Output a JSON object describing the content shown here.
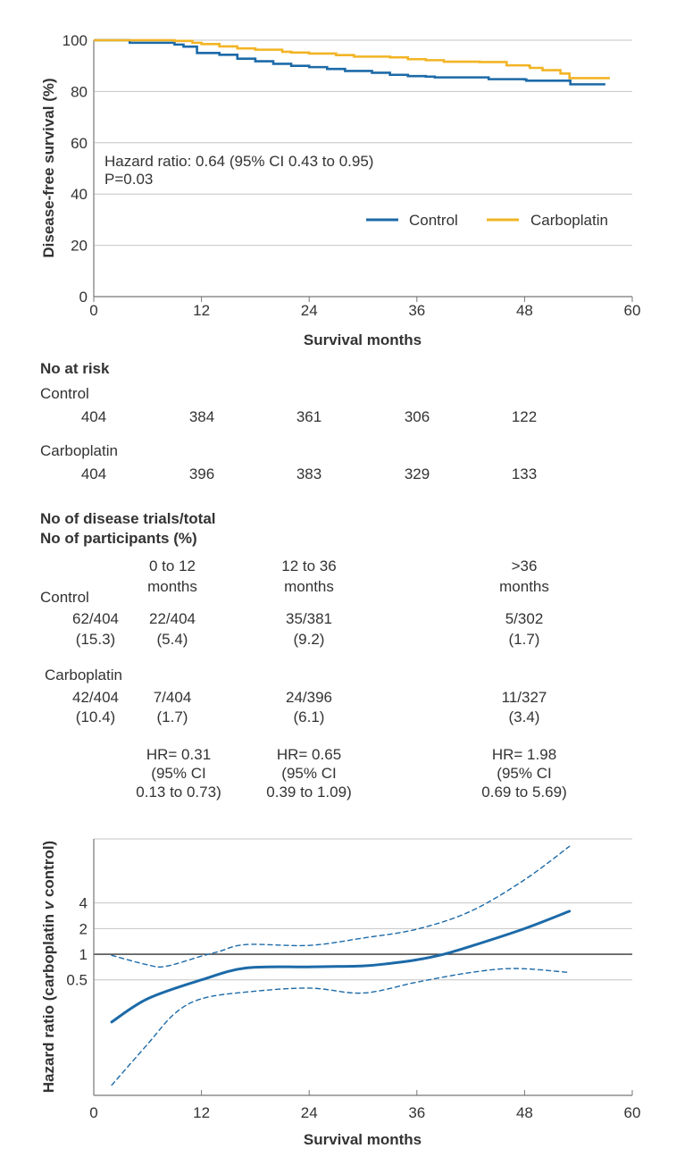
{
  "colors": {
    "control": "#1c6aa8",
    "carboplatin": "#f2b425",
    "grid": "#c4c4c4",
    "axis": "#777777",
    "reference_line": "#333333"
  },
  "chart_data": [
    {
      "type": "line",
      "step": true,
      "xlabel": "Survival months",
      "ylabel": "Disease-free survival (%)",
      "xlim": [
        0,
        60
      ],
      "ylim": [
        0,
        100
      ],
      "xticks": [
        0,
        12,
        24,
        36,
        48,
        60
      ],
      "yticks": [
        0,
        20,
        40,
        60,
        80,
        100
      ],
      "grid": "horizontal",
      "legend_placement": "middle-right",
      "annotation": [
        "Hazard ratio: 0.64 (95% CI 0.43 to 0.95)",
        "P=0.03"
      ],
      "series": [
        {
          "name": "Control",
          "color_key": "control",
          "x": [
            0,
            2,
            4,
            9,
            10,
            11.5,
            14,
            16,
            18,
            20,
            22,
            24,
            26,
            28,
            31,
            33,
            35,
            37,
            38,
            43,
            44,
            48,
            48.2,
            53,
            53.1,
            57
          ],
          "y": [
            100,
            100,
            99,
            98.3,
            97.5,
            95,
            94.3,
            92.8,
            91.8,
            90.8,
            90,
            89.5,
            88.8,
            88,
            87.3,
            86.5,
            86,
            85.8,
            85.5,
            85.5,
            84.8,
            84.7,
            84.2,
            84.2,
            82.8,
            82.8
          ]
        },
        {
          "name": "Carboplatin",
          "color_key": "carboplatin",
          "x": [
            0,
            8,
            9,
            11,
            12,
            14,
            16,
            18,
            21,
            22,
            24,
            27,
            29,
            33,
            35,
            37,
            39,
            43,
            46,
            48.5,
            48.6,
            50,
            52,
            53,
            57.5
          ],
          "y": [
            100,
            100,
            99.7,
            99,
            98.5,
            97.6,
            96.8,
            96.3,
            95.5,
            95.2,
            94.8,
            94.2,
            93.6,
            93.3,
            92.6,
            92.2,
            91.6,
            91.5,
            90.2,
            90,
            89.2,
            88.3,
            87,
            85.2,
            85.2
          ]
        }
      ]
    },
    {
      "type": "line",
      "xlabel": "Survival months",
      "ylabel_parts": [
        "Hazard ratio (carboplatin ",
        "v",
        " control)"
      ],
      "xlim": [
        0,
        60
      ],
      "ylim": [
        0.022,
        22.6
      ],
      "yscale": "log",
      "xticks": [
        0,
        12,
        24,
        36,
        48,
        60
      ],
      "yticks": [
        0.5,
        1,
        2,
        4
      ],
      "ytick_labels": [
        "0.5",
        "1",
        "2",
        "4"
      ],
      "reference_line": 1,
      "grid": "horizontal",
      "series": [
        {
          "role": "estimate",
          "style": "solid",
          "x": [
            2,
            6,
            12,
            17,
            24,
            30,
            33,
            36,
            39,
            42,
            48,
            53
          ],
          "y": [
            0.16,
            0.3,
            0.5,
            0.69,
            0.71,
            0.73,
            0.78,
            0.86,
            1.0,
            1.24,
            2.0,
            3.2
          ]
        },
        {
          "role": "upper 95% CI",
          "style": "dashed",
          "x": [
            2,
            6,
            8,
            12,
            14,
            17,
            24,
            30,
            36,
            42,
            48,
            53
          ],
          "y": [
            0.97,
            0.75,
            0.72,
            0.95,
            1.08,
            1.3,
            1.27,
            1.55,
            1.97,
            3.2,
            7.5,
            18.5
          ]
        },
        {
          "role": "lower 95% CI",
          "style": "dashed",
          "x": [
            2,
            6,
            9,
            12,
            17,
            24,
            30,
            36,
            42,
            47,
            53
          ],
          "y": [
            0.029,
            0.088,
            0.2,
            0.3,
            0.36,
            0.4,
            0.35,
            0.47,
            0.61,
            0.68,
            0.61
          ]
        }
      ]
    }
  ],
  "risk_table": {
    "title": "No at risk",
    "rows": [
      {
        "label": "Control",
        "values": [
          "404",
          "384",
          "361",
          "306",
          "122"
        ]
      },
      {
        "label": "Carboplatin",
        "values": [
          "404",
          "396",
          "383",
          "329",
          "133"
        ]
      }
    ]
  },
  "events_table": {
    "title_line1": "No of disease trials/total",
    "title_line2": "No of participants (%)",
    "columns": [
      {
        "line1": "0 to 12",
        "line2": "months"
      },
      {
        "line1": "12 to 36",
        "line2": "months"
      },
      {
        "line1": ">36",
        "line2": "months"
      }
    ],
    "rows": [
      {
        "label": "Control",
        "total": [
          "62/404",
          "(15.3)"
        ],
        "cells": [
          [
            "22/404",
            "(5.4)"
          ],
          [
            "35/381",
            "(9.2)"
          ],
          [
            "5/302",
            "(1.7)"
          ]
        ]
      },
      {
        "label": "Carboplatin",
        "total": [
          "42/404",
          "(10.4)"
        ],
        "cells": [
          [
            "7/404",
            "(1.7)"
          ],
          [
            "24/396",
            "(6.1)"
          ],
          [
            "11/327",
            "(3.4)"
          ]
        ]
      }
    ],
    "hazard_ratios": [
      [
        "HR= 0.31",
        "(95% CI",
        "0.13 to 0.73)"
      ],
      [
        "HR= 0.65",
        "(95% CI",
        "0.39 to 1.09)"
      ],
      [
        "HR= 1.98",
        "(95% CI",
        "0.69 to 5.69)"
      ]
    ]
  }
}
